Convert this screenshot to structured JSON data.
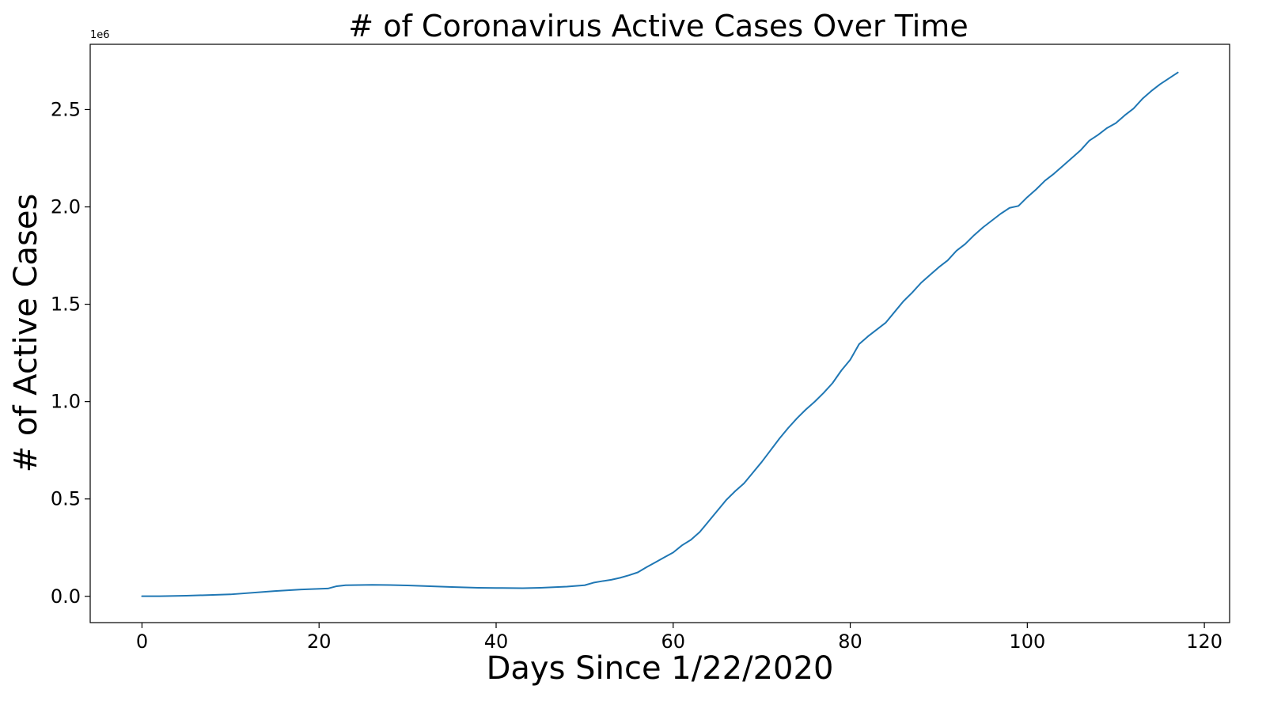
{
  "chart_data": {
    "type": "line",
    "title": "# of Coronavirus Active Cases Over Time",
    "xlabel": "Days Since 1/22/2020",
    "ylabel": "# of Active Cases",
    "y_offset_label": "1e6",
    "xlim": [
      -5.85,
      122.85
    ],
    "ylim": [
      -0.135,
      2.835
    ],
    "x_ticks": [
      0,
      20,
      40,
      60,
      80,
      100,
      120
    ],
    "x_tick_labels": [
      "0",
      "20",
      "40",
      "60",
      "80",
      "100",
      "120"
    ],
    "y_ticks": [
      0.0,
      0.5,
      1.0,
      1.5,
      2.0,
      2.5
    ],
    "y_tick_labels": [
      "0.0",
      "0.5",
      "1.0",
      "1.5",
      "2.0",
      "2.5"
    ],
    "y_multiplier": 1000000,
    "grid": false,
    "legend": "none",
    "series": [
      {
        "color": "#1f77b4",
        "x": [
          0,
          2,
          5,
          10,
          15,
          18,
          21,
          22,
          23,
          26,
          28,
          30,
          35,
          38,
          40,
          43,
          45,
          48,
          50,
          51,
          52,
          53,
          54,
          55,
          56,
          57,
          58,
          59,
          60,
          61,
          62,
          63,
          64,
          65,
          66,
          67,
          68,
          69,
          70,
          71,
          72,
          73,
          74,
          75,
          76,
          77,
          78,
          79,
          80,
          81,
          82,
          83,
          84,
          85,
          86,
          87,
          88,
          89,
          90,
          91,
          92,
          93,
          94,
          95,
          96,
          97,
          98,
          99,
          100,
          101,
          102,
          103,
          104,
          105,
          106,
          107,
          108,
          109,
          110,
          111,
          112,
          113,
          114,
          115,
          116,
          117
        ],
        "y": [
          0.0005,
          0.0008,
          0.003,
          0.01,
          0.027,
          0.035,
          0.04,
          0.052,
          0.057,
          0.059,
          0.058,
          0.056,
          0.048,
          0.044,
          0.043,
          0.042,
          0.044,
          0.05,
          0.057,
          0.07,
          0.078,
          0.085,
          0.095,
          0.108,
          0.123,
          0.15,
          0.175,
          0.2,
          0.225,
          0.262,
          0.29,
          0.33,
          0.385,
          0.44,
          0.495,
          0.54,
          0.58,
          0.635,
          0.69,
          0.75,
          0.81,
          0.865,
          0.915,
          0.96,
          1.0,
          1.045,
          1.095,
          1.16,
          1.215,
          1.295,
          1.335,
          1.37,
          1.405,
          1.46,
          1.515,
          1.56,
          1.61,
          1.65,
          1.69,
          1.725,
          1.775,
          1.81,
          1.855,
          1.895,
          1.93,
          1.965,
          1.995,
          2.005,
          2.05,
          2.09,
          2.135,
          2.17,
          2.21,
          2.25,
          2.29,
          2.34,
          2.37,
          2.405,
          2.43,
          2.47,
          2.505,
          2.555,
          2.595,
          2.63,
          2.66,
          2.69
        ]
      }
    ]
  }
}
